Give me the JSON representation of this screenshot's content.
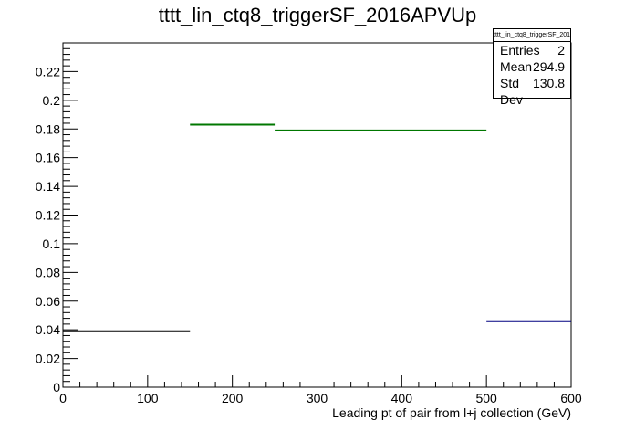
{
  "chart_data": {
    "type": "histogram",
    "title": "tttt_lin_ctq8_triggerSF_2016APVUp",
    "xlabel": "Leading pt of pair from l+j collection (GeV)",
    "ylabel": "",
    "xlim": [
      0,
      600
    ],
    "ylim": [
      0,
      0.24
    ],
    "x_ticks": [
      0,
      100,
      200,
      300,
      400,
      500,
      600
    ],
    "y_ticks": [
      0,
      0.02,
      0.04,
      0.06,
      0.08,
      0.1,
      0.12,
      0.14,
      0.16,
      0.18,
      0.2,
      0.22
    ],
    "y_tick_labels": [
      "0",
      "0.02",
      "0.04",
      "0.06",
      "0.08",
      "0.1",
      "0.12",
      "0.14",
      "0.16",
      "0.18",
      "0.2",
      "0.22"
    ],
    "grid": false,
    "bins": [
      {
        "x_low": 0,
        "x_high": 150,
        "value": 0.039,
        "color": "#000000"
      },
      {
        "x_low": 150,
        "x_high": 250,
        "value": 0.183,
        "color": "#007700"
      },
      {
        "x_low": 250,
        "x_high": 500,
        "value": 0.179,
        "color": "#007700"
      },
      {
        "x_low": 500,
        "x_high": 600,
        "value": 0.046,
        "color": "#000080"
      }
    ],
    "stats": {
      "name": "tttt_lin_ctq8_triggerSF_2016APVUp",
      "entries_label": "Entries",
      "entries": "2",
      "mean_label": "Mean",
      "mean": "294.9",
      "stddev_label": "Std Dev",
      "stddev": "130.8"
    }
  }
}
